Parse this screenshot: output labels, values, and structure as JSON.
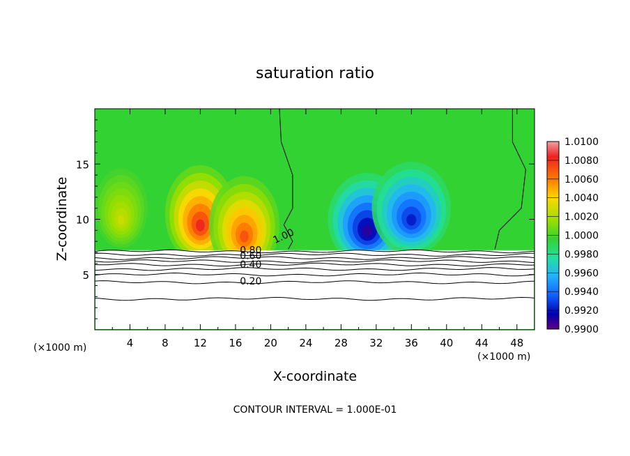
{
  "chart_data": {
    "type": "heatmap",
    "title": "saturation ratio",
    "xlabel": "X-coordinate",
    "ylabel": "Z-coordinate",
    "x_unit_left": "(×1000 m)",
    "x_unit_right": "(×1000 m)",
    "footer": "CONTOUR INTERVAL = 1.000E-01",
    "xlim": [
      0,
      50
    ],
    "ylim": [
      0,
      20
    ],
    "x_ticks": [
      4,
      8,
      12,
      16,
      20,
      24,
      28,
      32,
      36,
      40,
      44,
      48
    ],
    "y_ticks": [
      5,
      10,
      15
    ],
    "colorbar": {
      "min": 0.99,
      "max": 1.01,
      "labels": [
        "1.0100",
        "1.0080",
        "1.0060",
        "1.0040",
        "1.0020",
        "1.0000",
        "0.9980",
        "0.9960",
        "0.9940",
        "0.9920",
        "0.9900"
      ]
    },
    "contour_labels": [
      "1.00",
      "0.80",
      "0.60",
      "0.40",
      "0.20"
    ],
    "contour_levels": [
      1.0,
      0.8,
      0.6,
      0.4,
      0.2
    ],
    "features": [
      {
        "kind": "supersaturated",
        "x_center": 12,
        "z_center": 10.5,
        "peak": 1.008
      },
      {
        "kind": "supersaturated",
        "x_center": 17,
        "z_center": 9.5,
        "peak": 1.007
      },
      {
        "kind": "supersaturated",
        "x_center": 3,
        "z_center": 11,
        "peak": 1.003
      },
      {
        "kind": "subsaturated",
        "x_center": 31,
        "z_center": 10,
        "peak": 0.991
      },
      {
        "kind": "subsaturated",
        "x_center": 36,
        "z_center": 11,
        "peak": 0.9925
      }
    ]
  }
}
